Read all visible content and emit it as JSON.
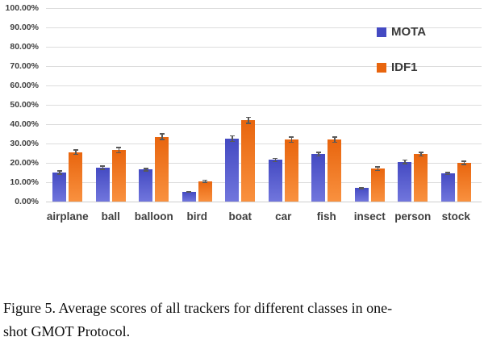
{
  "chart_data": {
    "type": "bar",
    "title": "",
    "xlabel": "",
    "ylabel": "",
    "ylim": [
      0,
      100
    ],
    "grid": true,
    "legend_position": "top-right",
    "error_bars": true,
    "gridline_color": "#dcdcdc",
    "error_bar_color": "#595959",
    "tick_label_color": "#404040",
    "y_tick_labels": [
      "100.00%",
      "90.00%",
      "80.00%",
      "70.00%",
      "60.00%",
      "50.00%",
      "40.00%",
      "30.00%",
      "20.00%",
      "10.00%",
      "0.00%"
    ],
    "categories": [
      "airplane",
      "ball",
      "balloon",
      "bird",
      "boat",
      "car",
      "fish",
      "insect",
      "person",
      "stock"
    ],
    "series": [
      {
        "name": "MOTA",
        "color": "#444ac2",
        "color_light": "#7176dd",
        "values": [
          15.0,
          17.5,
          16.5,
          5.0,
          32.5,
          21.5,
          24.5,
          7.0,
          20.5,
          14.5
        ],
        "errors": [
          1.2,
          1.2,
          1.0,
          0.6,
          1.8,
          1.2,
          1.2,
          0.7,
          1.3,
          0.8
        ]
      },
      {
        "name": "IDF1",
        "color": "#e8650e",
        "color_light": "#f9913f",
        "values": [
          25.5,
          26.5,
          33.5,
          10.5,
          42.0,
          32.0,
          32.0,
          17.0,
          24.5,
          20.0
        ],
        "errors": [
          1.5,
          1.7,
          1.8,
          0.8,
          1.8,
          1.7,
          1.6,
          1.2,
          1.2,
          1.2
        ]
      }
    ]
  },
  "caption": {
    "line1": "Figure 5. Average scores of all trackers for different classes in one-",
    "line2": "shot GMOT Protocol."
  }
}
